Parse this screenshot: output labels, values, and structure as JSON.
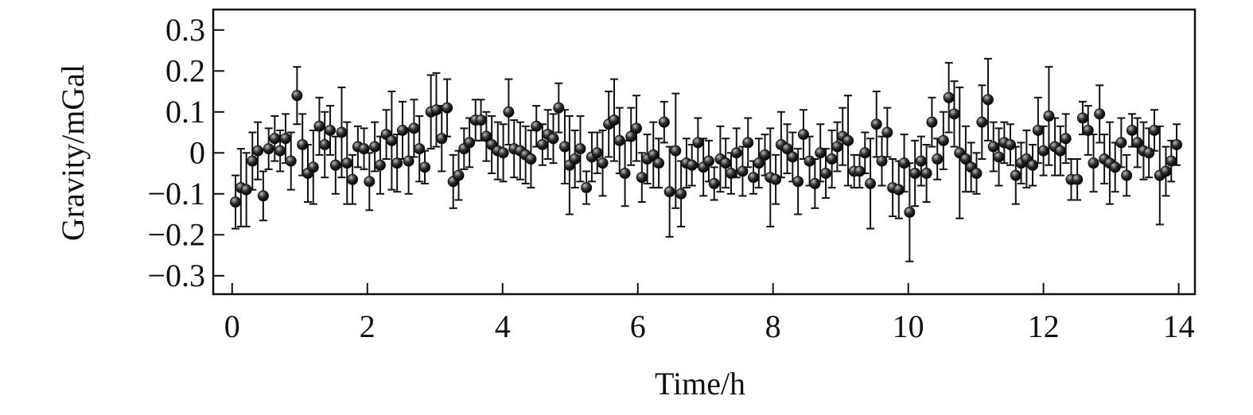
{
  "chart_data": {
    "type": "scatter",
    "xlabel": "Time/h",
    "ylabel": "Gravity/mGal",
    "color": "#111111",
    "xlim": [
      -0.28,
      14.24
    ],
    "ylim": [
      -0.345,
      0.35
    ],
    "xticks": [
      0,
      2,
      4,
      6,
      8,
      10,
      12,
      14
    ],
    "yticks": [
      {
        "value": -0.3,
        "label": "−0.3"
      },
      {
        "value": -0.2,
        "label": "−0.2"
      },
      {
        "value": -0.1,
        "label": "−0.1"
      },
      0,
      0.1,
      0.2,
      0.3
    ],
    "x": [
      0.05,
      0.13,
      0.21,
      0.3,
      0.38,
      0.46,
      0.54,
      0.63,
      0.71,
      0.79,
      0.87,
      0.96,
      1.04,
      1.12,
      1.2,
      1.29,
      1.37,
      1.45,
      1.53,
      1.62,
      1.7,
      1.78,
      1.86,
      1.95,
      2.03,
      2.11,
      2.19,
      2.28,
      2.36,
      2.44,
      2.52,
      2.61,
      2.69,
      2.77,
      2.85,
      2.94,
      3.02,
      3.1,
      3.18,
      3.27,
      3.35,
      3.43,
      3.51,
      3.6,
      3.68,
      3.76,
      3.84,
      3.93,
      4.01,
      4.09,
      4.17,
      4.26,
      4.34,
      4.42,
      4.5,
      4.59,
      4.67,
      4.75,
      4.83,
      4.92,
      4.99,
      5.07,
      5.15,
      5.24,
      5.32,
      5.4,
      5.48,
      5.57,
      5.65,
      5.73,
      5.81,
      5.9,
      5.98,
      6.06,
      6.14,
      6.23,
      6.31,
      6.39,
      6.47,
      6.56,
      6.64,
      6.72,
      6.8,
      6.89,
      6.97,
      7.05,
      7.13,
      7.22,
      7.3,
      7.38,
      7.46,
      7.55,
      7.63,
      7.71,
      7.79,
      7.88,
      7.96,
      8.04,
      8.12,
      8.21,
      8.29,
      8.37,
      8.45,
      8.54,
      8.62,
      8.7,
      8.78,
      8.87,
      8.95,
      9.03,
      9.11,
      9.2,
      9.28,
      9.36,
      9.44,
      9.53,
      9.61,
      9.69,
      9.77,
      9.86,
      9.94,
      10.02,
      10.1,
      10.19,
      10.27,
      10.35,
      10.43,
      10.52,
      10.6,
      10.68,
      10.76,
      10.85,
      10.93,
      11.01,
      11.09,
      11.18,
      11.26,
      11.34,
      11.42,
      11.51,
      11.59,
      11.67,
      11.75,
      11.84,
      11.92,
      12.0,
      12.08,
      12.17,
      12.25,
      12.33,
      12.41,
      12.5,
      12.58,
      12.66,
      12.74,
      12.83,
      12.9,
      12.98,
      13.06,
      13.15,
      13.23,
      13.31,
      13.39,
      13.48,
      13.56,
      13.64,
      13.72,
      13.81,
      13.89,
      13.97
    ],
    "values": [
      -0.12,
      -0.085,
      -0.09,
      -0.02,
      0.005,
      -0.105,
      0.01,
      0.035,
      0.005,
      0.035,
      -0.02,
      0.14,
      0.02,
      -0.05,
      -0.035,
      0.065,
      0.02,
      0.055,
      -0.03,
      0.05,
      -0.025,
      -0.065,
      0.015,
      0.01,
      -0.07,
      0.015,
      -0.03,
      0.045,
      0.03,
      -0.025,
      0.055,
      -0.02,
      0.06,
      0.01,
      -0.035,
      0.1,
      0.105,
      0.035,
      0.11,
      -0.07,
      -0.055,
      0.01,
      0.025,
      0.08,
      0.08,
      0.04,
      0.02,
      0.005,
      0,
      0.1,
      0.01,
      0.005,
      -0.005,
      -0.015,
      0.065,
      0.02,
      0.045,
      0.035,
      0.11,
      0.015,
      -0.03,
      -0.015,
      0.01,
      -0.085,
      -0.01,
      0,
      -0.025,
      0.07,
      0.08,
      0.03,
      -0.05,
      0.04,
      0.06,
      -0.06,
      -0.015,
      -0.005,
      -0.025,
      0.075,
      -0.095,
      0.005,
      -0.1,
      -0.025,
      -0.03,
      0.025,
      -0.035,
      -0.02,
      -0.075,
      -0.015,
      -0.025,
      -0.05,
      0,
      -0.045,
      0.025,
      -0.06,
      -0.025,
      -0.005,
      -0.06,
      -0.065,
      0.02,
      0.01,
      -0.01,
      -0.07,
      0.045,
      -0.02,
      -0.075,
      0,
      -0.05,
      -0.015,
      0.015,
      0.04,
      0.03,
      -0.045,
      -0.045,
      0,
      -0.075,
      0.07,
      -0.02,
      0.05,
      -0.085,
      -0.09,
      -0.025,
      -0.145,
      -0.05,
      -0.02,
      -0.05,
      0.075,
      -0.015,
      0.03,
      0.135,
      0.095,
      0,
      -0.015,
      -0.035,
      -0.05,
      0.075,
      0.13,
      0.015,
      -0.01,
      0.025,
      0.02,
      -0.055,
      -0.025,
      -0.015,
      -0.03,
      0.055,
      0.005,
      0.09,
      0.015,
      0.005,
      0.035,
      -0.065,
      -0.065,
      0.085,
      0.055,
      -0.025,
      0.095,
      -0.015,
      -0.025,
      -0.035,
      0.025,
      -0.055,
      0.055,
      0.025,
      0.005,
      0,
      0.055,
      -0.055,
      -0.045,
      -0.02,
      0.02
    ],
    "errors": [
      0.065,
      0.095,
      0.09,
      0.07,
      0.07,
      0.06,
      0.05,
      0.055,
      0.05,
      0.06,
      0.07,
      0.07,
      0.075,
      0.07,
      0.09,
      0.07,
      0.08,
      0.06,
      0.07,
      0.11,
      0.1,
      0.06,
      0.05,
      0.05,
      0.07,
      0.06,
      0.07,
      0.06,
      0.12,
      0.07,
      0.07,
      0.08,
      0.07,
      0.08,
      0.04,
      0.09,
      0.09,
      0.08,
      0.07,
      0.065,
      0.06,
      0.05,
      0.06,
      0.05,
      0.05,
      0.06,
      0.07,
      0.07,
      0.07,
      0.08,
      0.07,
      0.07,
      0.07,
      0.07,
      0.05,
      0.05,
      0.06,
      0.06,
      0.06,
      0.09,
      0.12,
      0.07,
      0.08,
      0.04,
      0.06,
      0.05,
      0.08,
      0.08,
      0.1,
      0.08,
      0.08,
      0.07,
      0.08,
      0.06,
      0.06,
      0.08,
      0.06,
      0.05,
      0.11,
      0.14,
      0.08,
      0.06,
      0.05,
      0.06,
      0.07,
      0.05,
      0.04,
      0.08,
      0.06,
      0.05,
      0.06,
      0.06,
      0.06,
      0.04,
      0.06,
      0.05,
      0.12,
      0.06,
      0.08,
      0.06,
      0.06,
      0.08,
      0.06,
      0.06,
      0.06,
      0.07,
      0.06,
      0.07,
      0.06,
      0.07,
      0.11,
      0.04,
      0.04,
      0.05,
      0.11,
      0.08,
      0.06,
      0.06,
      0.07,
      0.07,
      0.07,
      0.12,
      0.08,
      0.06,
      0.07,
      0.06,
      0.05,
      0.07,
      0.085,
      0.08,
      0.16,
      0.08,
      0.06,
      0.05,
      0.09,
      0.1,
      0.06,
      0.07,
      0.05,
      0.05,
      0.07,
      0.05,
      0.07,
      0.05,
      0.08,
      0.06,
      0.12,
      0.07,
      0.06,
      0.06,
      0.05,
      0.05,
      0.04,
      0.06,
      0.07,
      0.07,
      0.06,
      0.1,
      0.06,
      0.06,
      0.05,
      0.04,
      0.06,
      0.07,
      0.06,
      0.05,
      0.12,
      0.06,
      0.05,
      0.05
    ]
  }
}
